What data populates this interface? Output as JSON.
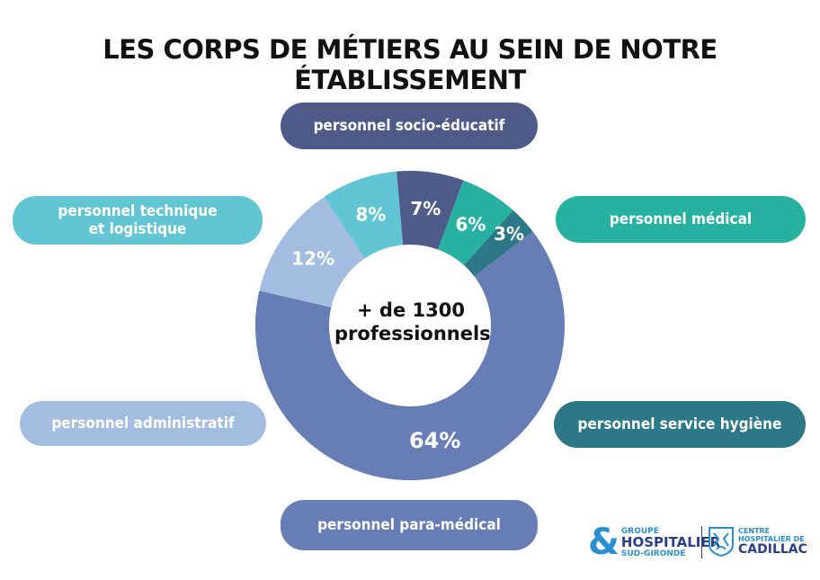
{
  "title": "LES CORPS DE MÉTIERS AU SEIN DE NOTRE ÉTABLISSEMENT",
  "center_label": {
    "line1": "+ de 1300",
    "line2": "professionnels"
  },
  "labels": {
    "socio_educatif": "personnel socio-éducatif",
    "technique_l1": "personnel technique",
    "technique_l2": "et logistique",
    "medical": "personnel médical",
    "administratif": "personnel administratif",
    "hygiene": "personnel service hygiène",
    "para_medical": "personnel para-médical"
  },
  "chart_data": {
    "type": "pie",
    "donut": true,
    "title": "LES CORPS DE MÉTIERS AU SEIN DE NOTRE ÉTABLISSEMENT",
    "slices": [
      {
        "category": "personnel socio-éducatif",
        "value": 7,
        "label": "7%",
        "color": "#4e5a88"
      },
      {
        "category": "personnel médical",
        "value": 6,
        "label": "6%",
        "color": "#26b1a0"
      },
      {
        "category": "personnel service hygiène",
        "value": 3,
        "label": "3%",
        "color": "#2d7888"
      },
      {
        "category": "personnel para-médical",
        "value": 64,
        "label": "64%",
        "color": "#667db5"
      },
      {
        "category": "personnel administratif",
        "value": 12,
        "label": "12%",
        "color": "#a3bde0"
      },
      {
        "category": "personnel technique et logistique",
        "value": 8,
        "label": "8%",
        "color": "#62c5d3"
      }
    ]
  },
  "colors": {
    "socio_educatif": "#4e5a88",
    "technique": "#62c5d3",
    "medical": "#26b1a0",
    "administratif": "#a3bde0",
    "hygiene": "#2d7888",
    "para_medical": "#667db5"
  },
  "logo": {
    "left_amp": "&",
    "left_line1": "GROUPE",
    "left_line2": "HOSPITALIER",
    "left_line3": "SUD-GIRONDE",
    "right_line1": "CENTRE",
    "right_line2": "HOSPITALIER DE",
    "right_line3": "CADILLAC",
    "icon": "cadillac-emblem-icon"
  }
}
